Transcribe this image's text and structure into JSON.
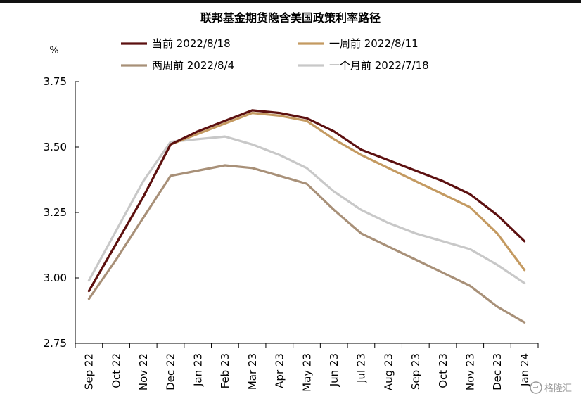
{
  "chart_data": {
    "type": "line",
    "title": "联邦基金期货隐含美国政策利率路径",
    "xlabel": "",
    "ylabel": "%",
    "ylim": [
      2.75,
      3.75
    ],
    "yticks": [
      "3.75",
      "3.50",
      "3.25",
      "3.00",
      "2.75"
    ],
    "grid": false,
    "legend_position": "top",
    "categories": [
      "Sep 22",
      "Oct 22",
      "Nov 22",
      "Dec 22",
      "Jan 23",
      "Feb 23",
      "Mar 23",
      "Apr 23",
      "May 23",
      "Jun 23",
      "Jul 23",
      "Aug 23",
      "Sep 23",
      "Oct 23",
      "Nov 23",
      "Dec 23",
      "Jan 24"
    ],
    "series": [
      {
        "name": "当前 2022/8/18",
        "color": "#5c1010",
        "values": [
          2.95,
          3.13,
          3.31,
          3.51,
          3.56,
          3.6,
          3.64,
          3.63,
          3.61,
          3.56,
          3.49,
          3.45,
          3.41,
          3.37,
          3.32,
          3.24,
          3.14
        ]
      },
      {
        "name": "一周前 2022/8/11",
        "color": "#c49a61",
        "values": [
          2.95,
          3.13,
          3.31,
          3.51,
          3.55,
          3.59,
          3.63,
          3.62,
          3.6,
          3.53,
          3.47,
          3.42,
          3.37,
          3.32,
          3.27,
          3.17,
          3.03
        ]
      },
      {
        "name": "两周前 2022/8/4",
        "color": "#a89078",
        "values": [
          2.92,
          3.07,
          3.23,
          3.39,
          3.41,
          3.43,
          3.42,
          3.39,
          3.36,
          3.26,
          3.17,
          3.12,
          3.07,
          3.02,
          2.97,
          2.89,
          2.83
        ]
      },
      {
        "name": "一个月前 2022/7/18",
        "color": "#c8c8c8",
        "values": [
          2.99,
          3.18,
          3.37,
          3.52,
          3.53,
          3.54,
          3.51,
          3.47,
          3.42,
          3.33,
          3.26,
          3.21,
          3.17,
          3.14,
          3.11,
          3.05,
          2.98
        ]
      }
    ]
  },
  "watermark": {
    "text": "格隆汇",
    "icon": "gelonghui-logo-icon"
  }
}
